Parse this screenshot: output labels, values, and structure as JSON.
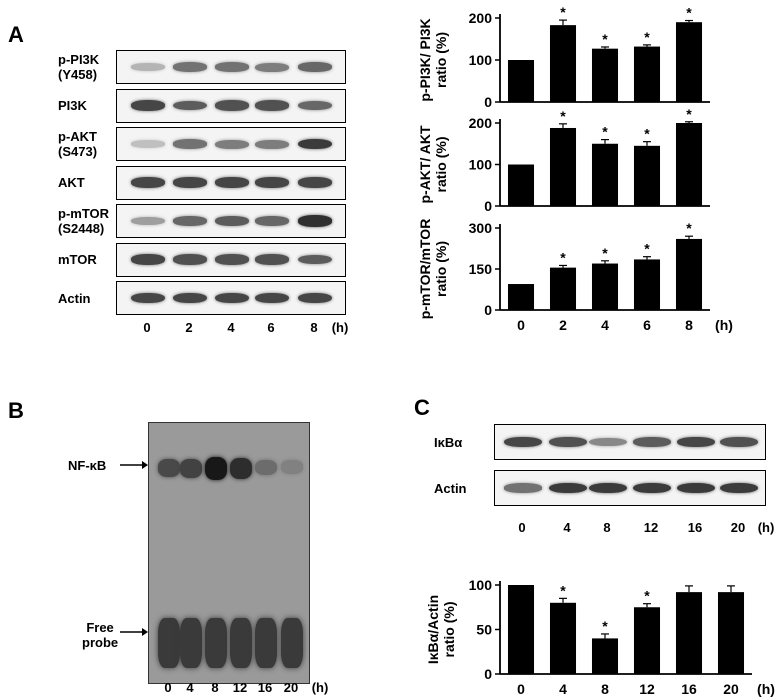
{
  "panels": {
    "A": "A",
    "B": "B",
    "C": "C"
  },
  "panelA": {
    "blots": [
      {
        "label": "p-PI3K\n(Y458)",
        "intensity": [
          0.25,
          0.55,
          0.55,
          0.5,
          0.6
        ]
      },
      {
        "label": "PI3K",
        "intensity": [
          0.75,
          0.65,
          0.7,
          0.7,
          0.6
        ]
      },
      {
        "label": "p-AKT\n(S473)",
        "intensity": [
          0.2,
          0.55,
          0.5,
          0.5,
          0.8
        ]
      },
      {
        "label": "AKT",
        "intensity": [
          0.75,
          0.75,
          0.75,
          0.75,
          0.75
        ]
      },
      {
        "label": "p-mTOR\n(S2448)",
        "intensity": [
          0.35,
          0.6,
          0.65,
          0.6,
          0.85
        ]
      },
      {
        "label": "mTOR",
        "intensity": [
          0.75,
          0.7,
          0.7,
          0.7,
          0.65
        ]
      },
      {
        "label": "Actin",
        "intensity": [
          0.75,
          0.75,
          0.75,
          0.75,
          0.75
        ]
      }
    ],
    "lanes": [
      "0",
      "2",
      "4",
      "6",
      "8"
    ],
    "unit": "(h)"
  },
  "panelB": {
    "labels": {
      "nfkb": "NF-κB",
      "free": "Free\nprobe"
    },
    "lanes": [
      "0",
      "4",
      "8",
      "12",
      "16",
      "20"
    ],
    "unit": "(h)",
    "nfkb_intensity": [
      0.55,
      0.6,
      0.9,
      0.75,
      0.3,
      0.15
    ]
  },
  "panelC": {
    "blots": [
      {
        "label": "IκBα",
        "intensity": [
          0.75,
          0.7,
          0.45,
          0.65,
          0.75,
          0.7
        ]
      },
      {
        "label": "Actin",
        "intensity": [
          0.55,
          0.8,
          0.8,
          0.8,
          0.8,
          0.8
        ]
      }
    ],
    "lanes": [
      "0",
      "4",
      "8",
      "12",
      "16",
      "20"
    ],
    "unit": "(h)"
  },
  "chart_data": [
    {
      "type": "bar",
      "categories": [
        "0",
        "2",
        "4",
        "6",
        "8"
      ],
      "values": [
        100,
        183,
        127,
        132,
        190
      ],
      "errors": [
        0,
        12,
        4,
        4,
        4
      ],
      "significant": [
        false,
        true,
        true,
        true,
        true
      ],
      "ylabel": "p-PI3K/ PI3K\nratio (%)",
      "ylim": [
        0,
        200
      ],
      "yticks": [
        0,
        100,
        200
      ],
      "xlabel": "",
      "xunit": ""
    },
    {
      "type": "bar",
      "categories": [
        "0",
        "2",
        "4",
        "6",
        "8"
      ],
      "values": [
        100,
        188,
        150,
        145,
        200
      ],
      "errors": [
        0,
        10,
        10,
        10,
        3
      ],
      "significant": [
        false,
        true,
        true,
        true,
        true
      ],
      "ylabel": "p-AKT/ AKT\nratio (%)",
      "ylim": [
        0,
        200
      ],
      "yticks": [
        0,
        100,
        200
      ],
      "xlabel": "",
      "xunit": ""
    },
    {
      "type": "bar",
      "categories": [
        "0",
        "2",
        "4",
        "6",
        "8"
      ],
      "values": [
        95,
        155,
        170,
        185,
        260
      ],
      "errors": [
        0,
        8,
        10,
        10,
        10
      ],
      "significant": [
        false,
        true,
        true,
        true,
        true
      ],
      "ylabel": "p-mTOR/mTOR\nratio (%)",
      "ylim": [
        0,
        300
      ],
      "yticks": [
        0,
        150,
        300
      ],
      "xlabel": "",
      "xunit": "(h)"
    },
    {
      "type": "bar",
      "categories": [
        "0",
        "4",
        "8",
        "12",
        "16",
        "20"
      ],
      "values": [
        100,
        80,
        40,
        75,
        92,
        92
      ],
      "errors": [
        0,
        5,
        5,
        4,
        7,
        7
      ],
      "significant": [
        false,
        true,
        true,
        true,
        false,
        false
      ],
      "ylabel": "IκBα/Actin\nratio (%)",
      "ylim": [
        0,
        100
      ],
      "yticks": [
        0,
        50,
        100
      ],
      "xlabel": "",
      "xunit": "(h)"
    }
  ]
}
